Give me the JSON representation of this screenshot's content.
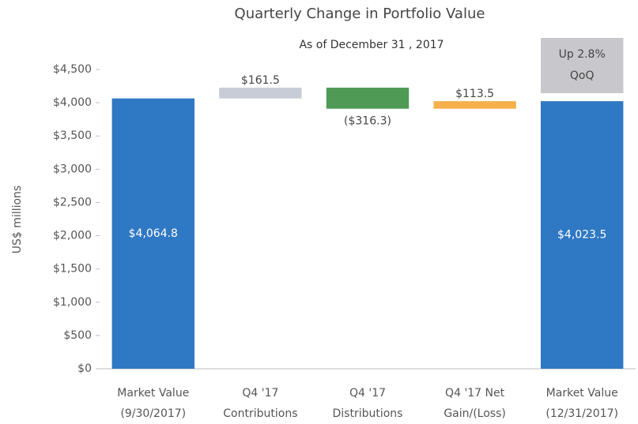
{
  "chart_data": {
    "type": "waterfall",
    "title": "Quarterly Change in Portfolio Value",
    "subtitle": "As of December 31 , 2017",
    "ylabel": "US$ millions",
    "categories": [
      [
        "Market Value",
        "(9/30/2017)"
      ],
      [
        "Q4 '17",
        "Contributions"
      ],
      [
        "Q4 '17",
        "Distributions"
      ],
      [
        "Q4 '17 Net",
        "Gain/(Loss)"
      ],
      [
        "Market Value",
        "(12/31/2017)"
      ]
    ],
    "values": [
      4064.8,
      161.5,
      -316.3,
      113.5,
      4023.5
    ],
    "value_labels": [
      "$4,064.8",
      "$161.5",
      "($316.3)",
      "$113.5",
      "$4,023.5"
    ],
    "colors": [
      "#2f78c4",
      "#c8ccd6",
      "#4f9a55",
      "#f6b04a",
      "#2f78c4"
    ],
    "annotation": [
      "Up 2.8%",
      "QoQ"
    ],
    "ylim": [
      0,
      4500
    ],
    "yticks": [
      {
        "value": 0,
        "label": "$0"
      },
      {
        "value": 500,
        "label": "$500"
      },
      {
        "value": 1000,
        "label": "$1,000"
      },
      {
        "value": 1500,
        "label": "$1,500"
      },
      {
        "value": 2000,
        "label": "$2,000"
      },
      {
        "value": 2500,
        "label": "$2,500"
      },
      {
        "value": 3000,
        "label": "$3,000"
      },
      {
        "value": 3500,
        "label": "$3,500"
      },
      {
        "value": 4000,
        "label": "$4,000"
      },
      {
        "value": 4500,
        "label": "$4,500"
      }
    ],
    "grid": false
  }
}
